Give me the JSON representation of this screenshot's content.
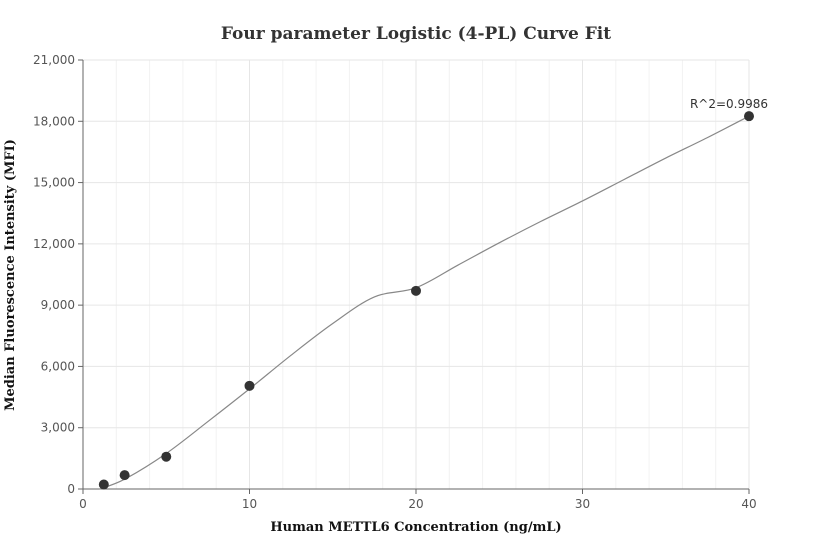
{
  "chart_data": {
    "type": "scatter",
    "title": "Four parameter Logistic (4-PL) Curve Fit",
    "xlabel": "Human METTL6 Concentration (ng/mL)",
    "ylabel": "Median Fluorescence Intensity (MFI)",
    "xlim": [
      0,
      40
    ],
    "ylim": [
      0,
      21000
    ],
    "x_ticks": [
      0,
      10,
      20,
      30,
      40
    ],
    "x_tick_labels": [
      "0",
      "10",
      "20",
      "30",
      "40"
    ],
    "y_ticks": [
      0,
      3000,
      6000,
      9000,
      12000,
      15000,
      18000,
      21000
    ],
    "y_tick_labels": [
      "0",
      "3,000",
      "6,000",
      "9,000",
      "12,000",
      "15,000",
      "18,000",
      "21,000"
    ],
    "grid": true,
    "points": [
      {
        "x": 1.25,
        "y": 220
      },
      {
        "x": 2.5,
        "y": 680
      },
      {
        "x": 5,
        "y": 1580
      },
      {
        "x": 10,
        "y": 5050
      },
      {
        "x": 20,
        "y": 9700
      },
      {
        "x": 40,
        "y": 18250
      }
    ],
    "fit_curve": {
      "x": [
        1.0,
        2.5,
        5,
        7.5,
        10,
        12.5,
        15,
        17.5,
        20,
        22.5,
        25,
        27.5,
        30,
        32.5,
        35,
        37.5,
        40
      ],
      "y": [
        0,
        480,
        1740,
        3300,
        4900,
        6550,
        8100,
        9400,
        9850,
        10950,
        12050,
        13100,
        14100,
        15150,
        16200,
        17200,
        18250
      ]
    },
    "annotation": {
      "text": "R^2=0.9986",
      "x": 40,
      "y": 18250
    },
    "colors": {
      "point": "#333333",
      "curve": "#888888",
      "grid": "#e6e6e6",
      "axis": "#666666"
    }
  }
}
